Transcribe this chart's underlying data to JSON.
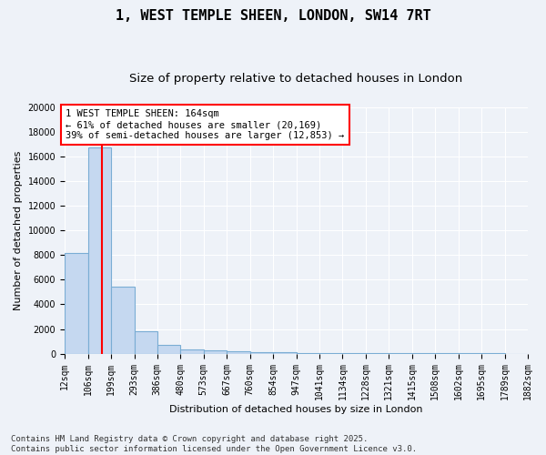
{
  "title1": "1, WEST TEMPLE SHEEN, LONDON, SW14 7RT",
  "title2": "Size of property relative to detached houses in London",
  "xlabel": "Distribution of detached houses by size in London",
  "ylabel": "Number of detached properties",
  "bin_edges": [
    12,
    106,
    199,
    293,
    386,
    480,
    573,
    667,
    760,
    854,
    947,
    1041,
    1134,
    1228,
    1321,
    1415,
    1508,
    1602,
    1695,
    1789,
    1882
  ],
  "bar_heights": [
    8200,
    16700,
    5400,
    1800,
    700,
    350,
    250,
    200,
    130,
    90,
    70,
    50,
    40,
    30,
    25,
    20,
    15,
    10,
    8,
    5
  ],
  "bar_color": "#c5d8f0",
  "bar_edgecolor": "#7aadd4",
  "property_size": 164,
  "vline_color": "red",
  "annotation_text": "1 WEST TEMPLE SHEEN: 164sqm\n← 61% of detached houses are smaller (20,169)\n39% of semi-detached houses are larger (12,853) →",
  "annotation_box_color": "white",
  "annotation_box_edgecolor": "red",
  "ylim": [
    0,
    20000
  ],
  "yticks": [
    0,
    2000,
    4000,
    6000,
    8000,
    10000,
    12000,
    14000,
    16000,
    18000,
    20000
  ],
  "background_color": "#eef2f8",
  "footer_text": "Contains HM Land Registry data © Crown copyright and database right 2025.\nContains public sector information licensed under the Open Government Licence v3.0.",
  "title_fontsize": 11,
  "subtitle_fontsize": 9.5,
  "axis_label_fontsize": 8,
  "tick_fontsize": 7,
  "footer_fontsize": 6.5,
  "annotation_fontsize": 7.5
}
